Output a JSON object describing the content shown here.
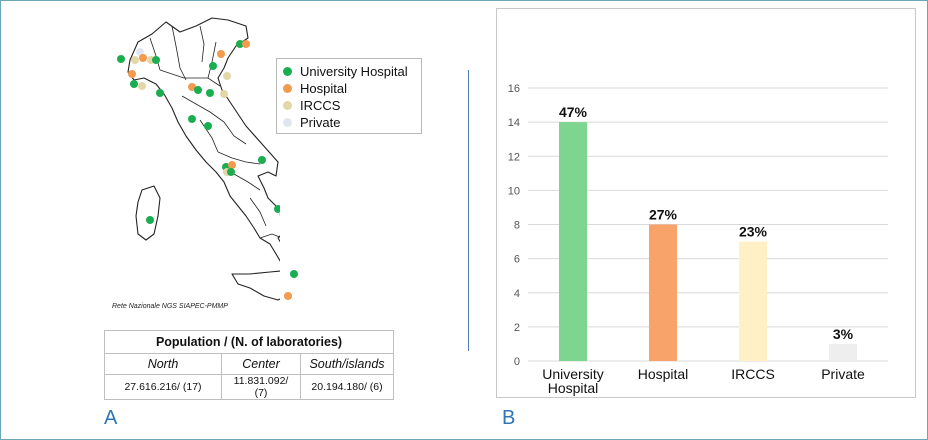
{
  "legend": {
    "items": [
      {
        "label": "University Hospital",
        "color": "#1aae50"
      },
      {
        "label": "Hospital",
        "color": "#f29a4e"
      },
      {
        "label": "IRCCS",
        "color": "#e3d7a8"
      },
      {
        "label": "Private",
        "color": "#dde6f1"
      }
    ]
  },
  "map": {
    "credit": "Rete Nazionale NGS SIAPEC-PMMP"
  },
  "population_table": {
    "header": "Population / (N. of laboratories)",
    "regions": [
      "North",
      "Center",
      "South/islands"
    ],
    "values": [
      "27.616.216/ (17)",
      "11.831.092/ (7)",
      "20.194.180/ (6)"
    ]
  },
  "panels": {
    "a": "A",
    "b": "B"
  },
  "chart_data": {
    "type": "bar",
    "categories": [
      "University Hospital",
      "Hospital",
      "IRCCS",
      "Private"
    ],
    "category_lines": [
      [
        "University",
        "Hospital"
      ],
      [
        "Hospital"
      ],
      [
        "IRCCS"
      ],
      [
        "Private"
      ]
    ],
    "values": [
      14,
      8,
      7,
      1
    ],
    "data_labels": [
      "47%",
      "27%",
      "23%",
      "3%"
    ],
    "colors": [
      "#7ed58f",
      "#f8a36a",
      "#fff0c6",
      "#eeeeee"
    ],
    "ylim": [
      0,
      16
    ],
    "yticks": [
      0,
      2,
      4,
      6,
      8,
      10,
      12,
      14,
      16
    ],
    "grid": true
  }
}
